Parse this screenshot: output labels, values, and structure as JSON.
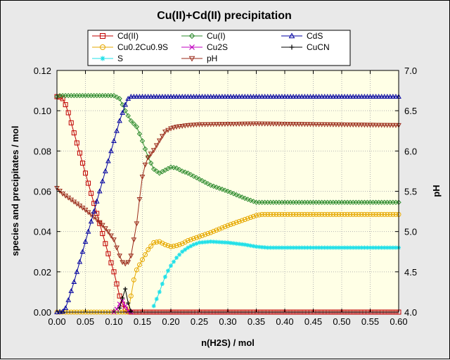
{
  "chart_data": {
    "type": "line",
    "title": "Cu(II)+Cd(II) precipitation",
    "xlabel": "n(H2S) / mol",
    "ylabel": "species and precipitates / mol",
    "y2label": "pH",
    "xlim": [
      0,
      0.6
    ],
    "ylim": [
      0,
      0.12
    ],
    "y2lim": [
      4.0,
      7.0
    ],
    "xticks": [
      "0.00",
      "0.05",
      "0.10",
      "0.15",
      "0.20",
      "0.25",
      "0.30",
      "0.35",
      "0.40",
      "0.45",
      "0.50",
      "0.55",
      "0.60"
    ],
    "yticks": [
      "0.00",
      "0.02",
      "0.04",
      "0.06",
      "0.08",
      "0.10",
      "0.12"
    ],
    "y2ticks": [
      "4.0",
      "4.5",
      "5.0",
      "5.5",
      "6.0",
      "6.5",
      "7.0"
    ],
    "grid": true,
    "legend_position": "top",
    "colors": {
      "plot_bg": "#ffffe6",
      "frame_bg": "#e9e9e9",
      "grid": "#b4b4b4",
      "cdII": "#c00000",
      "cuI": "#2e8b2e",
      "cds": "#0000a0",
      "cu02": "#e6a800",
      "cu2s": "#c000c0",
      "cucn": "#000000",
      "s": "#20e0e8",
      "ph": "#9a2a1a"
    },
    "series": [
      {
        "name": "Cd(II)",
        "key": "cdII",
        "marker": "square",
        "axis": "left",
        "points": [
          [
            0,
            0.107
          ],
          [
            0.005,
            0.1068
          ],
          [
            0.01,
            0.106
          ],
          [
            0.015,
            0.103
          ],
          [
            0.02,
            0.099
          ],
          [
            0.025,
            0.094
          ],
          [
            0.03,
            0.089
          ],
          [
            0.04,
            0.079
          ],
          [
            0.05,
            0.069
          ],
          [
            0.06,
            0.059
          ],
          [
            0.07,
            0.049
          ],
          [
            0.08,
            0.039
          ],
          [
            0.09,
            0.029
          ],
          [
            0.1,
            0.02
          ],
          [
            0.105,
            0.014
          ],
          [
            0.11,
            0.008
          ],
          [
            0.115,
            0.004
          ],
          [
            0.12,
            0.0015
          ],
          [
            0.125,
            0.0003
          ],
          [
            0.13,
            0
          ],
          [
            0.6,
            0
          ]
        ]
      },
      {
        "name": "Cu0.2Cu0.9S",
        "key": "cu02",
        "marker": "circle",
        "axis": "left",
        "points": [
          [
            0,
            0
          ],
          [
            0.125,
            0
          ],
          [
            0.13,
            0.008
          ],
          [
            0.135,
            0.016
          ],
          [
            0.14,
            0.021
          ],
          [
            0.15,
            0.026
          ],
          [
            0.16,
            0.031
          ],
          [
            0.17,
            0.0345
          ],
          [
            0.18,
            0.035
          ],
          [
            0.19,
            0.0335
          ],
          [
            0.2,
            0.0325
          ],
          [
            0.21,
            0.033
          ],
          [
            0.22,
            0.034
          ],
          [
            0.23,
            0.0355
          ],
          [
            0.25,
            0.0375
          ],
          [
            0.27,
            0.0395
          ],
          [
            0.3,
            0.043
          ],
          [
            0.33,
            0.046
          ],
          [
            0.35,
            0.048
          ],
          [
            0.36,
            0.0485
          ],
          [
            0.6,
            0.0485
          ]
        ]
      },
      {
        "name": "S",
        "key": "s",
        "marker": "asterisk",
        "axis": "left",
        "points": [
          [
            0.17,
            0.003
          ],
          [
            0.175,
            0.0065
          ],
          [
            0.18,
            0.01
          ],
          [
            0.185,
            0.014
          ],
          [
            0.19,
            0.0175
          ],
          [
            0.195,
            0.0205
          ],
          [
            0.2,
            0.023
          ],
          [
            0.21,
            0.027
          ],
          [
            0.22,
            0.03
          ],
          [
            0.23,
            0.032
          ],
          [
            0.24,
            0.0335
          ],
          [
            0.25,
            0.0345
          ],
          [
            0.27,
            0.035
          ],
          [
            0.3,
            0.0345
          ],
          [
            0.33,
            0.0335
          ],
          [
            0.35,
            0.0325
          ],
          [
            0.37,
            0.032
          ],
          [
            0.6,
            0.032
          ]
        ]
      },
      {
        "name": "Cu(I)",
        "key": "cuI",
        "marker": "diamond",
        "axis": "left",
        "points": [
          [
            0,
            0.107
          ],
          [
            0.005,
            0.1075
          ],
          [
            0.01,
            0.1075
          ],
          [
            0.1,
            0.1075
          ],
          [
            0.11,
            0.106
          ],
          [
            0.12,
            0.1
          ],
          [
            0.13,
            0.095
          ],
          [
            0.14,
            0.092
          ],
          [
            0.15,
            0.085
          ],
          [
            0.16,
            0.077
          ],
          [
            0.17,
            0.071
          ],
          [
            0.18,
            0.069
          ],
          [
            0.19,
            0.0705
          ],
          [
            0.2,
            0.072
          ],
          [
            0.21,
            0.0715
          ],
          [
            0.22,
            0.07
          ],
          [
            0.23,
            0.069
          ],
          [
            0.25,
            0.066
          ],
          [
            0.27,
            0.063
          ],
          [
            0.3,
            0.06
          ],
          [
            0.33,
            0.0565
          ],
          [
            0.35,
            0.0545
          ],
          [
            0.36,
            0.0545
          ],
          [
            0.6,
            0.0545
          ]
        ]
      },
      {
        "name": "Cu2S",
        "key": "cu2s",
        "marker": "x",
        "axis": "left",
        "points": [
          [
            0.1,
            0
          ],
          [
            0.105,
            0.0015
          ],
          [
            0.11,
            0.004
          ],
          [
            0.115,
            0.0055
          ],
          [
            0.12,
            0.003
          ],
          [
            0.125,
            0.0005
          ],
          [
            0.13,
            0
          ]
        ]
      },
      {
        "name": "pH",
        "key": "ph",
        "marker": "triangle-down",
        "axis": "right",
        "points": [
          [
            0,
            5.54
          ],
          [
            0.01,
            5.47
          ],
          [
            0.02,
            5.42
          ],
          [
            0.03,
            5.37
          ],
          [
            0.04,
            5.32
          ],
          [
            0.05,
            5.27
          ],
          [
            0.06,
            5.21
          ],
          [
            0.07,
            5.15
          ],
          [
            0.08,
            5.08
          ],
          [
            0.09,
            5.0
          ],
          [
            0.1,
            4.9
          ],
          [
            0.105,
            4.8
          ],
          [
            0.11,
            4.7
          ],
          [
            0.115,
            4.62
          ],
          [
            0.12,
            4.6
          ],
          [
            0.125,
            4.62
          ],
          [
            0.13,
            4.7
          ],
          [
            0.135,
            4.9
          ],
          [
            0.14,
            5.1
          ],
          [
            0.145,
            5.4
          ],
          [
            0.15,
            5.68
          ],
          [
            0.155,
            5.83
          ],
          [
            0.16,
            5.92
          ],
          [
            0.17,
            6.01
          ],
          [
            0.18,
            6.13
          ],
          [
            0.19,
            6.24
          ],
          [
            0.2,
            6.28
          ],
          [
            0.21,
            6.3
          ],
          [
            0.22,
            6.31
          ],
          [
            0.23,
            6.32
          ],
          [
            0.25,
            6.33
          ],
          [
            0.3,
            6.335
          ],
          [
            0.35,
            6.34
          ],
          [
            0.6,
            6.32
          ]
        ]
      },
      {
        "name": "CdS",
        "key": "cds",
        "marker": "triangle-up",
        "axis": "left",
        "points": [
          [
            0,
            0
          ],
          [
            0.01,
            0.0003
          ],
          [
            0.015,
            0.002
          ],
          [
            0.02,
            0.006
          ],
          [
            0.03,
            0.015
          ],
          [
            0.04,
            0.025
          ],
          [
            0.05,
            0.035
          ],
          [
            0.06,
            0.045
          ],
          [
            0.07,
            0.055
          ],
          [
            0.08,
            0.065
          ],
          [
            0.09,
            0.075
          ],
          [
            0.1,
            0.085
          ],
          [
            0.11,
            0.095
          ],
          [
            0.12,
            0.103
          ],
          [
            0.125,
            0.106
          ],
          [
            0.13,
            0.107
          ],
          [
            0.6,
            0.107
          ]
        ]
      },
      {
        "name": "CuCN",
        "key": "cucn",
        "marker": "plus",
        "axis": "left",
        "points": [
          [
            0.11,
            0.002
          ],
          [
            0.115,
            0.007
          ],
          [
            0.12,
            0.0115
          ],
          [
            0.125,
            0.0045
          ],
          [
            0.13,
            0.0005
          ]
        ]
      }
    ]
  }
}
